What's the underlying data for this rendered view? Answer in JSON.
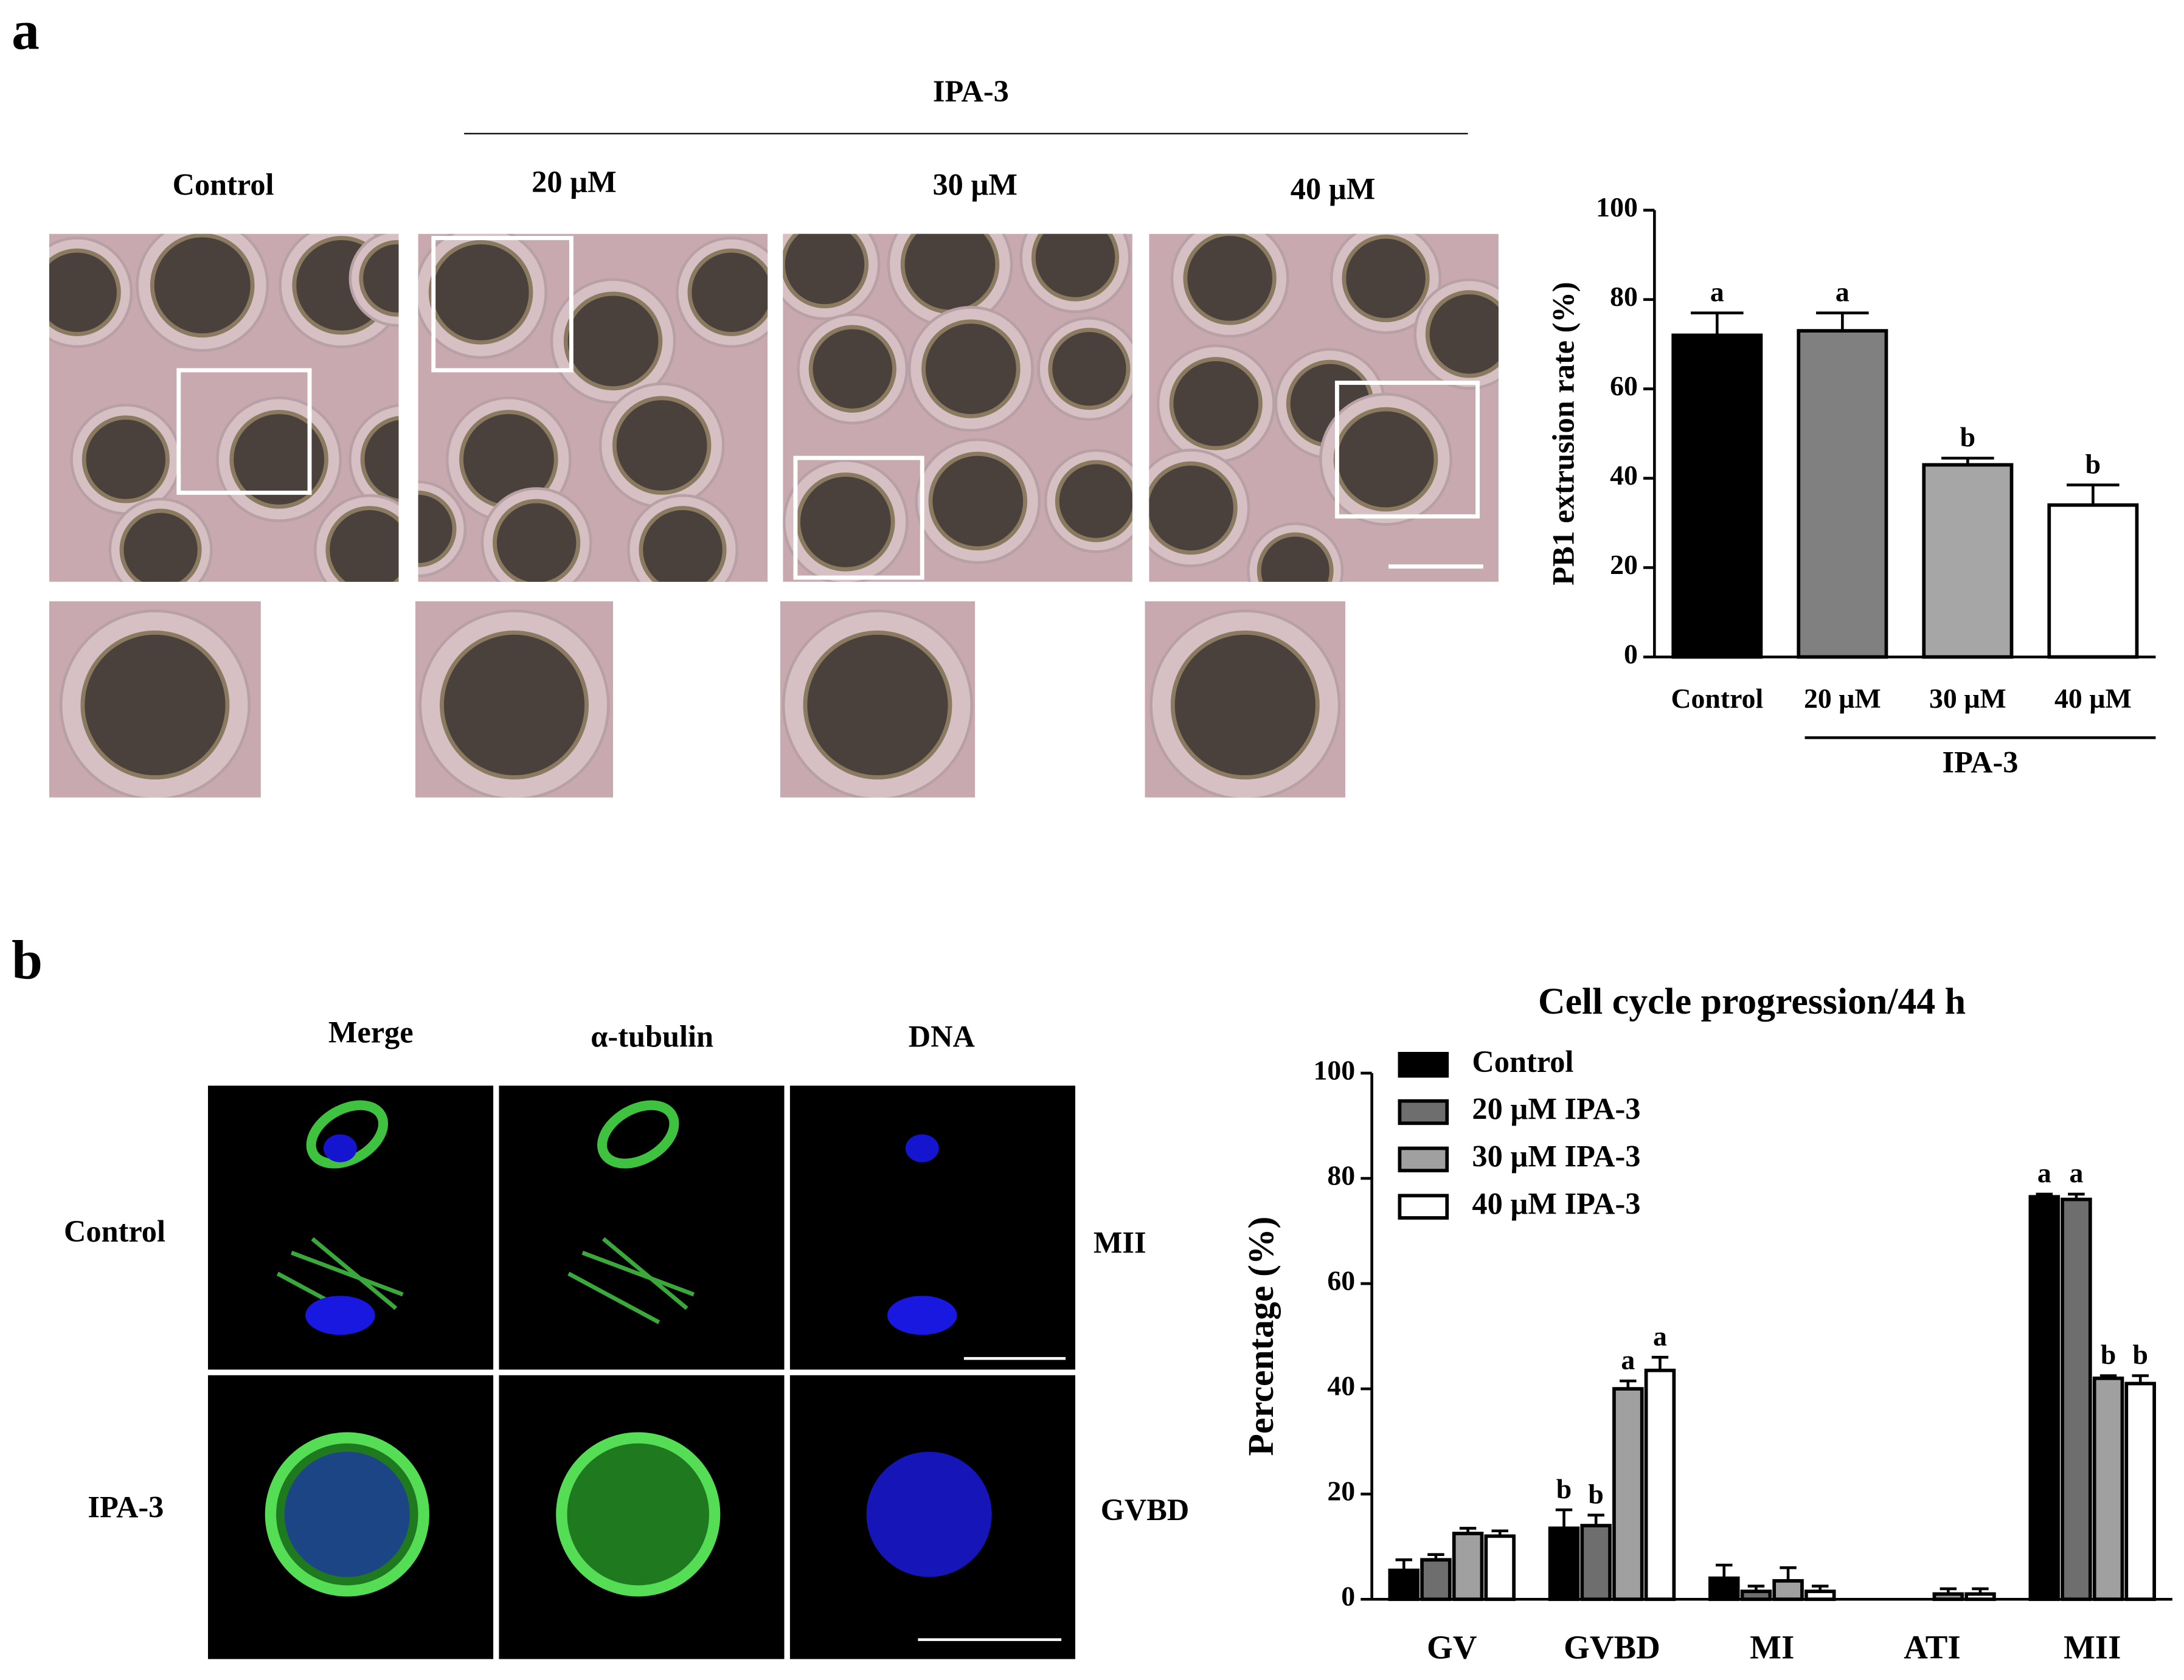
{
  "figure": {
    "panel_a": {
      "label": "a",
      "group": "IPA-3",
      "columns": [
        "Control",
        "20 µM",
        "30 µM",
        "40 µM"
      ]
    },
    "panel_b": {
      "label": "b",
      "columns": [
        "Merge",
        "α-tubulin",
        "DNA"
      ],
      "rows": [
        "Control",
        "IPA-3"
      ],
      "stages": [
        "MII",
        "GVBD"
      ]
    }
  },
  "chart_data": [
    {
      "type": "bar",
      "y_label": "PB1 extrusion rate (%)",
      "categories": [
        "Control",
        "20 µM",
        "30 µM",
        "40 µM"
      ],
      "values": [
        72,
        73,
        43,
        34
      ],
      "errors": [
        5,
        4,
        1.5,
        4.5
      ],
      "annotations": [
        "a",
        "a",
        "b",
        "b"
      ],
      "colors": [
        "#000000",
        "#808080",
        "#a6a6a6",
        "#ffffff"
      ],
      "group_label": "IPA-3",
      "ylim": [
        0,
        100
      ],
      "yticks": [
        0,
        20,
        40,
        60,
        80,
        100
      ]
    },
    {
      "type": "grouped_bar",
      "title": "Cell cycle progression/44 h",
      "y_label": "Percentage (%)",
      "categories": [
        "GV",
        "GVBD",
        "MI",
        "ATI",
        "MII"
      ],
      "series": [
        {
          "name": "Control",
          "color": "#000000",
          "values": [
            5.5,
            13.5,
            4,
            0,
            76.5
          ],
          "errors": [
            2,
            3.5,
            2.5,
            0,
            0.5
          ],
          "annotations": [
            null,
            "b",
            null,
            null,
            "a"
          ]
        },
        {
          "name": "20 µM IPA-3",
          "color": "#6e6e6e",
          "values": [
            7.5,
            14,
            1.5,
            0,
            76
          ],
          "errors": [
            1,
            2,
            1,
            0,
            1
          ],
          "annotations": [
            null,
            "b",
            null,
            null,
            "a"
          ]
        },
        {
          "name": "30 µM IPA-3",
          "color": "#a0a0a0",
          "values": [
            12.5,
            40,
            3.5,
            1,
            42
          ],
          "errors": [
            1,
            1.5,
            2.5,
            1,
            0.5
          ],
          "annotations": [
            null,
            "a",
            null,
            null,
            "b"
          ]
        },
        {
          "name": "40 µM IPA-3",
          "color": "#ffffff",
          "values": [
            12,
            43.5,
            1.5,
            1,
            41
          ],
          "errors": [
            1,
            2.5,
            1,
            1,
            1.5
          ],
          "annotations": [
            null,
            "a",
            null,
            null,
            "b"
          ]
        }
      ],
      "legend": "upper-left",
      "ylim": [
        0,
        100
      ],
      "yticks": [
        0,
        20,
        40,
        60,
        80,
        100
      ]
    }
  ]
}
